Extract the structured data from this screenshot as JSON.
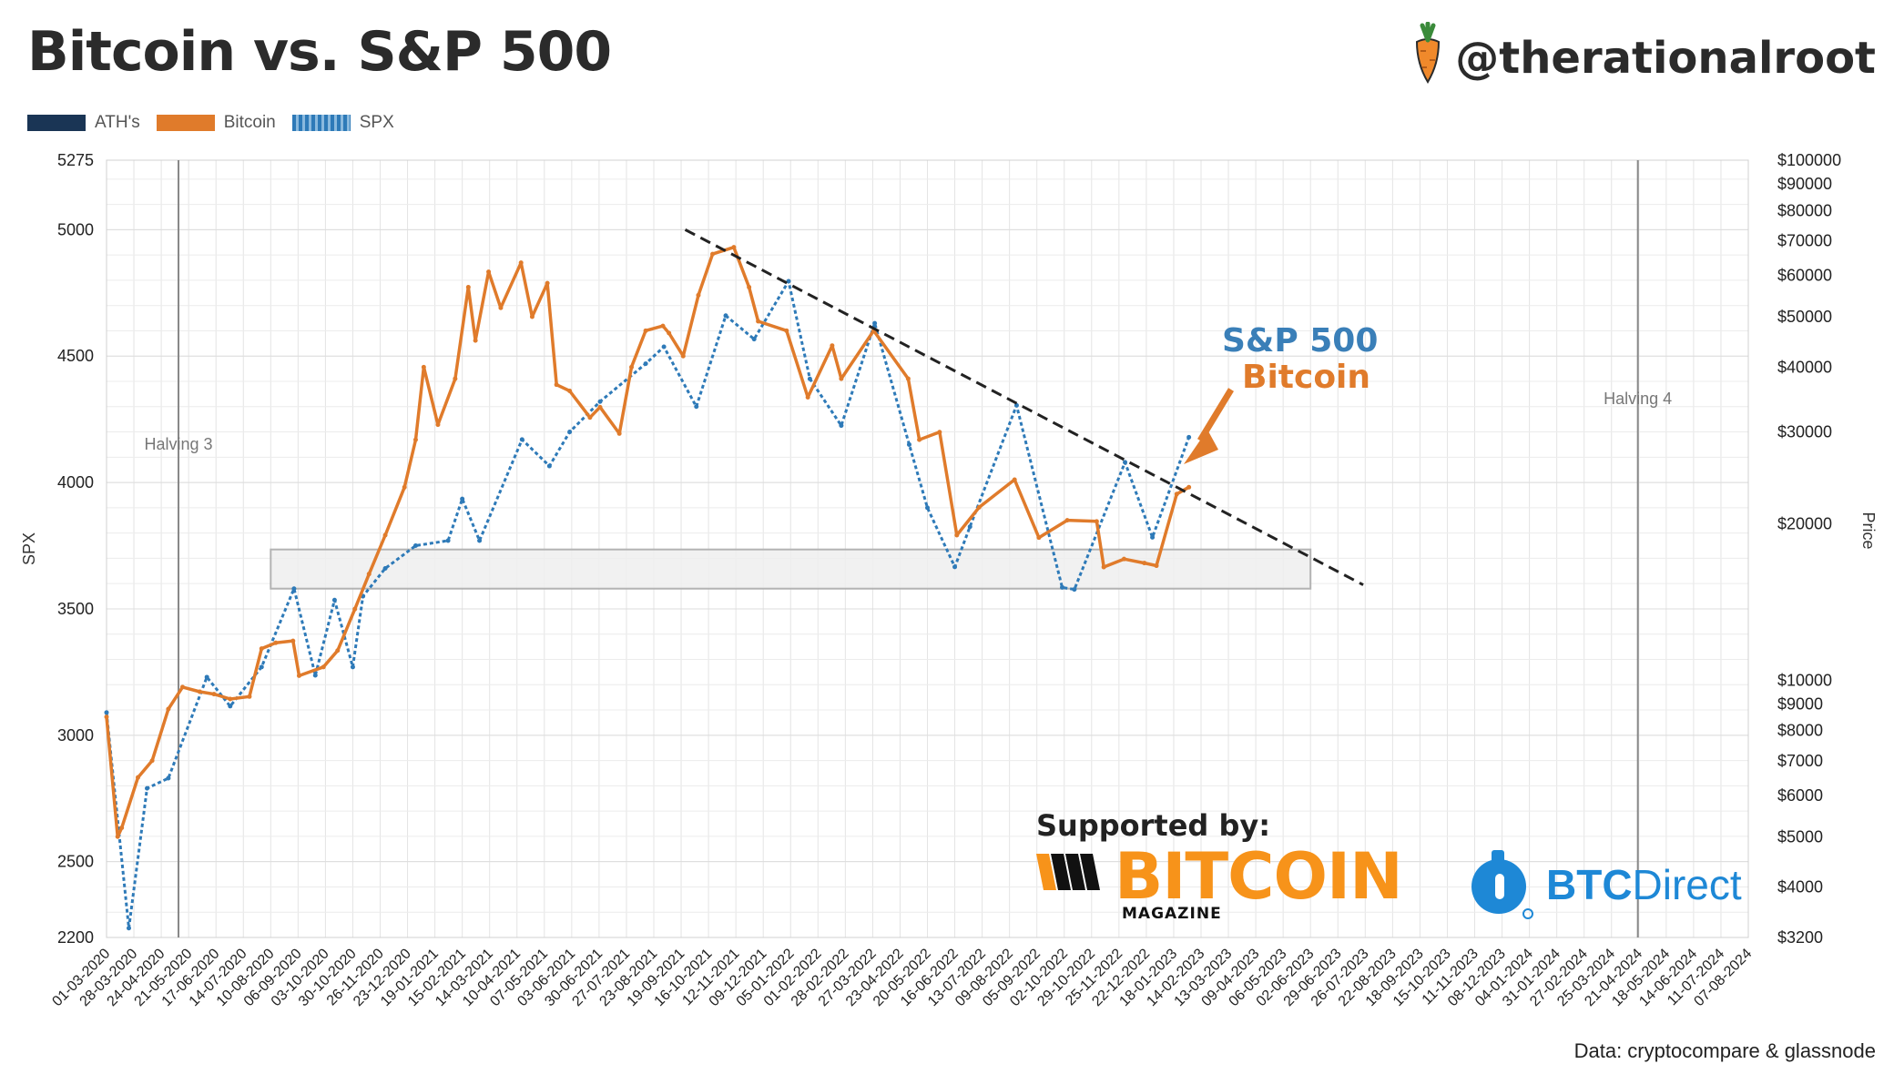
{
  "header": {
    "title": "Bitcoin vs. S&P 500",
    "handle": "@therationalroot",
    "source": "Data: cryptocompare & glassnode"
  },
  "legend": {
    "ath_label": "ATH's",
    "bitcoin_label": "Bitcoin",
    "spx_label": "SPX"
  },
  "annotations": {
    "spx_label": "S&P 500",
    "bitcoin_label": "Bitcoin",
    "halving_3": "Halving 3",
    "halving_4": "Halving 4",
    "supported_by": "Supported by:",
    "bm_word": "BITCOIN",
    "bm_sub": "MAGAZINE",
    "btcd_bold": "BTC",
    "btcd_rest": "Direct"
  },
  "colors": {
    "bitcoin": "#e07b2b",
    "spx": "#2e7ab8",
    "ath": "#1a3555",
    "trendline": "#222222",
    "range_box": "#eeeeee"
  },
  "icons": [
    "carrot-icon",
    "bitcoin-magazine-icon",
    "btc-direct-icon",
    "arrow-icon"
  ],
  "chart_data": {
    "type": "line",
    "title": "Bitcoin vs. S&P 500",
    "ylabel_left": "SPX",
    "ylabel_right": "Price",
    "left_axis": {
      "min": 2200,
      "max": 5275,
      "ticks": [
        2200,
        2500,
        3000,
        3500,
        4000,
        4500,
        5000,
        5275
      ]
    },
    "right_axis": {
      "scale": "log",
      "min": 3200,
      "max": 100000,
      "ticks": [
        "$3200",
        "$4000",
        "$5000",
        "$6000",
        "$7000",
        "$8000",
        "$9000",
        "$10000",
        "$20000",
        "$30000",
        "$40000",
        "$50000",
        "$60000",
        "$70000",
        "$80000",
        "$90000",
        "$100000"
      ]
    },
    "x_axis": {
      "start": "01-03-2020",
      "end": "07-08-2024",
      "ticks": [
        "01-03-2020",
        "28-03-2020",
        "24-04-2020",
        "21-05-2020",
        "17-06-2020",
        "14-07-2020",
        "10-08-2020",
        "06-09-2020",
        "03-10-2020",
        "30-10-2020",
        "26-11-2020",
        "23-12-2020",
        "19-01-2021",
        "15-02-2021",
        "14-03-2021",
        "10-04-2021",
        "07-05-2021",
        "03-06-2021",
        "30-06-2021",
        "27-07-2021",
        "23-08-2021",
        "19-09-2021",
        "16-10-2021",
        "12-11-2021",
        "09-12-2021",
        "05-01-2022",
        "01-02-2022",
        "28-02-2022",
        "27-03-2022",
        "23-04-2022",
        "20-05-2022",
        "16-06-2022",
        "13-07-2022",
        "09-08-2022",
        "05-09-2022",
        "02-10-2022",
        "29-10-2022",
        "25-11-2022",
        "22-12-2022",
        "18-01-2023",
        "14-02-2023",
        "13-03-2023",
        "09-04-2023",
        "06-05-2023",
        "02-06-2023",
        "29-06-2023",
        "26-07-2023",
        "22-08-2023",
        "18-09-2023",
        "15-10-2023",
        "11-11-2023",
        "08-12-2023",
        "04-01-2024",
        "31-01-2024",
        "27-02-2024",
        "25-03-2024",
        "21-04-2024",
        "18-05-2024",
        "14-06-2024",
        "11-07-2024",
        "07-08-2024"
      ]
    },
    "halvings": [
      {
        "label": "Halving 3",
        "date": "11-05-2020"
      },
      {
        "label": "Halving 4",
        "date": "20-04-2024"
      }
    ],
    "range_box": {
      "date_start": "10-08-2020",
      "date_end": "02-06-2023",
      "spx_low": 3580,
      "spx_high": 3735
    },
    "trendline": {
      "from": {
        "date": "23-09-2021",
        "spx": 5000
      },
      "to": {
        "date": "24-07-2023",
        "spx": 3595
      }
    },
    "series": [
      {
        "name": "Bitcoin",
        "axis": "right",
        "points": [
          [
            "01-03-2020",
            8500
          ],
          [
            "12-03-2020",
            5000
          ],
          [
            "16-03-2020",
            5200
          ],
          [
            "01-04-2020",
            6500
          ],
          [
            "15-04-2020",
            7000
          ],
          [
            "01-05-2020",
            8800
          ],
          [
            "15-05-2020",
            9700
          ],
          [
            "01-06-2020",
            9500
          ],
          [
            "15-06-2020",
            9400
          ],
          [
            "01-07-2020",
            9200
          ],
          [
            "20-07-2020",
            9300
          ],
          [
            "01-08-2020",
            11500
          ],
          [
            "15-08-2020",
            11800
          ],
          [
            "01-09-2020",
            11900
          ],
          [
            "07-09-2020",
            10200
          ],
          [
            "01-10-2020",
            10600
          ],
          [
            "15-10-2020",
            11400
          ],
          [
            "01-11-2020",
            13700
          ],
          [
            "15-11-2020",
            16000
          ],
          [
            "01-12-2020",
            19000
          ],
          [
            "20-12-2020",
            23500
          ],
          [
            "31-12-2020",
            29000
          ],
          [
            "08-01-2021",
            40000
          ],
          [
            "22-01-2021",
            31000
          ],
          [
            "08-02-2021",
            38000
          ],
          [
            "21-02-2021",
            57000
          ],
          [
            "28-02-2021",
            45000
          ],
          [
            "13-03-2021",
            61000
          ],
          [
            "25-03-2021",
            52000
          ],
          [
            "14-04-2021",
            63500
          ],
          [
            "25-04-2021",
            50000
          ],
          [
            "10-05-2021",
            58000
          ],
          [
            "19-05-2021",
            37000
          ],
          [
            "01-06-2021",
            36000
          ],
          [
            "21-06-2021",
            32000
          ],
          [
            "01-07-2021",
            33500
          ],
          [
            "20-07-2021",
            29800
          ],
          [
            "01-08-2021",
            40000
          ],
          [
            "15-08-2021",
            47000
          ],
          [
            "01-09-2021",
            48000
          ],
          [
            "07-09-2021",
            46500
          ],
          [
            "21-09-2021",
            42000
          ],
          [
            "06-10-2021",
            55000
          ],
          [
            "20-10-2021",
            66000
          ],
          [
            "10-11-2021",
            68000
          ],
          [
            "25-11-2021",
            57000
          ],
          [
            "04-12-2021",
            49000
          ],
          [
            "01-01-2022",
            47000
          ],
          [
            "22-01-2022",
            35000
          ],
          [
            "15-02-2022",
            44000
          ],
          [
            "24-02-2022",
            38000
          ],
          [
            "28-03-2022",
            47000
          ],
          [
            "01-05-2022",
            38000
          ],
          [
            "12-05-2022",
            29000
          ],
          [
            "01-06-2022",
            30000
          ],
          [
            "18-06-2022",
            19000
          ],
          [
            "10-07-2022",
            21500
          ],
          [
            "14-08-2022",
            24300
          ],
          [
            "07-09-2022",
            18800
          ],
          [
            "05-10-2022",
            20300
          ],
          [
            "03-11-2022",
            20200
          ],
          [
            "10-11-2022",
            16500
          ],
          [
            "30-11-2022",
            17100
          ],
          [
            "20-12-2022",
            16800
          ],
          [
            "01-01-2023",
            16600
          ],
          [
            "21-01-2023",
            22800
          ],
          [
            "02-02-2023",
            23500
          ]
        ]
      },
      {
        "name": "SPX",
        "axis": "left",
        "points": [
          [
            "01-03-2020",
            3090
          ],
          [
            "23-03-2020",
            2237
          ],
          [
            "10-04-2020",
            2790
          ],
          [
            "01-05-2020",
            2830
          ],
          [
            "08-06-2020",
            3230
          ],
          [
            "01-07-2020",
            3115
          ],
          [
            "01-08-2020",
            3270
          ],
          [
            "02-09-2020",
            3580
          ],
          [
            "23-09-2020",
            3237
          ],
          [
            "12-10-2020",
            3535
          ],
          [
            "30-10-2020",
            3270
          ],
          [
            "09-11-2020",
            3550
          ],
          [
            "01-12-2020",
            3660
          ],
          [
            "31-12-2020",
            3750
          ],
          [
            "01-02-2021",
            3770
          ],
          [
            "15-02-2021",
            3935
          ],
          [
            "04-03-2021",
            3770
          ],
          [
            "15-04-2021",
            4170
          ],
          [
            "12-05-2021",
            4065
          ],
          [
            "01-06-2021",
            4200
          ],
          [
            "01-07-2021",
            4320
          ],
          [
            "15-08-2021",
            4470
          ],
          [
            "02-09-2021",
            4537
          ],
          [
            "04-10-2021",
            4300
          ],
          [
            "02-11-2021",
            4660
          ],
          [
            "30-11-2021",
            4567
          ],
          [
            "03-01-2022",
            4796
          ],
          [
            "24-01-2022",
            4410
          ],
          [
            "24-02-2022",
            4225
          ],
          [
            "29-03-2022",
            4630
          ],
          [
            "02-05-2022",
            4150
          ],
          [
            "20-05-2022",
            3900
          ],
          [
            "16-06-2022",
            3666
          ],
          [
            "01-07-2022",
            3825
          ],
          [
            "16-08-2022",
            4305
          ],
          [
            "30-09-2022",
            3585
          ],
          [
            "12-10-2022",
            3577
          ],
          [
            "01-12-2022",
            4080
          ],
          [
            "28-12-2022",
            3783
          ],
          [
            "02-02-2023",
            4179
          ]
        ]
      }
    ]
  }
}
